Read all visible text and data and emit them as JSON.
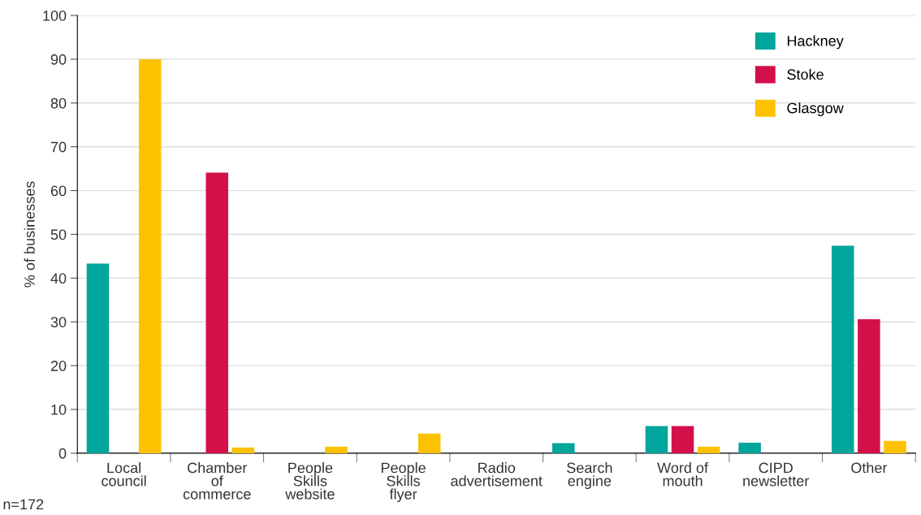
{
  "chart_data": {
    "type": "bar",
    "ylabel": "% of businesses",
    "categories": [
      "Local\ncouncil",
      "Chamber\nof\ncommerce",
      "People\nSkills\nwebsite",
      "People\nSkills\nflyer",
      "Radio\nadvertisement",
      "Search\nengine",
      "Word of\nmouth",
      "CIPD\nnewsletter",
      "Other"
    ],
    "series": [
      {
        "name": "Hackney",
        "color": "#00a59b",
        "values": [
          43.3,
          0,
          0,
          0,
          0,
          2.3,
          6.2,
          2.4,
          47.4
        ]
      },
      {
        "name": "Stoke",
        "color": "#d4104a",
        "values": [
          0,
          64.1,
          0,
          0,
          0,
          0,
          6.2,
          0,
          30.6
        ]
      },
      {
        "name": "Glasgow",
        "color": "#fcc200",
        "values": [
          90.0,
          1.3,
          1.5,
          4.5,
          0,
          0,
          1.5,
          0,
          2.8
        ]
      }
    ],
    "ylim": [
      0,
      100
    ],
    "yticks": [
      0,
      10,
      20,
      30,
      40,
      50,
      60,
      70,
      80,
      90,
      100
    ],
    "grid": "y",
    "legend": "top right",
    "annotations": [
      "n=172"
    ]
  }
}
